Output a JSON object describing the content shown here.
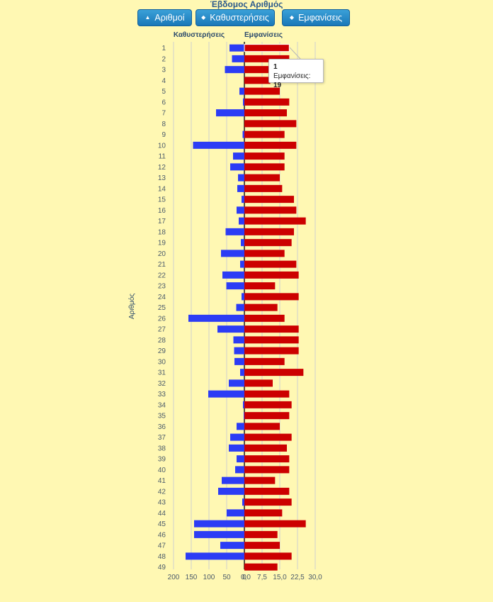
{
  "title": "Έβδομος Αριθμός",
  "buttons": [
    {
      "label": "Αριθμοί",
      "icon": "caret-up-icon",
      "glyph": "▲"
    },
    {
      "label": "Καθυστερήσεις",
      "icon": "sort-icon",
      "glyph": "◆"
    },
    {
      "label": "Εμφανίσεις",
      "icon": "sort-icon",
      "glyph": "◆"
    }
  ],
  "colors": {
    "delay": "#2c3cf5",
    "appear": "#cc0000",
    "bg": "#fff8b3"
  },
  "tooltip": {
    "number": "1",
    "label": "Εμφανίσεις:",
    "value": "19"
  },
  "chart_data": {
    "type": "bar",
    "orientation": "horizontal",
    "yaxis_label": "Αριθμός",
    "left_header": "Καθυστερήσεις",
    "right_header": "Εμφανίσεις",
    "categories": [
      "1",
      "2",
      "3",
      "4",
      "5",
      "6",
      "7",
      "8",
      "9",
      "10",
      "11",
      "12",
      "13",
      "14",
      "15",
      "16",
      "17",
      "18",
      "19",
      "20",
      "21",
      "22",
      "23",
      "24",
      "25",
      "26",
      "27",
      "28",
      "29",
      "30",
      "31",
      "32",
      "33",
      "34",
      "35",
      "36",
      "37",
      "38",
      "39",
      "40",
      "41",
      "42",
      "43",
      "44",
      "45",
      "46",
      "47",
      "48",
      "49"
    ],
    "series": [
      {
        "name": "Καθυστερήσεις",
        "values": [
          42,
          35,
          55,
          0,
          14,
          4,
          80,
          0,
          5,
          145,
          32,
          40,
          18,
          20,
          8,
          22,
          16,
          53,
          10,
          66,
          12,
          62,
          51,
          8,
          23,
          158,
          76,
          31,
          29,
          28,
          12,
          44,
          102,
          4,
          2,
          22,
          40,
          44,
          22,
          26,
          64,
          74,
          6,
          50,
          142,
          142,
          68,
          166,
          0
        ]
      },
      {
        "name": "Εμφανίσεις",
        "values": [
          19,
          19,
          16,
          11,
          15,
          19,
          18,
          22,
          17,
          22,
          17,
          17,
          15,
          16,
          21,
          22,
          26,
          21,
          20,
          17,
          22,
          23,
          13,
          23,
          14,
          17,
          23,
          23,
          23,
          17,
          25,
          12,
          19,
          20,
          19,
          15,
          20,
          18,
          19,
          19,
          13,
          19,
          20,
          16,
          26,
          14,
          15,
          20,
          14
        ]
      }
    ],
    "left_axis": {
      "ticks": [
        "200",
        "150",
        "100",
        "50",
        "0"
      ],
      "range": [
        200,
        0
      ]
    },
    "right_axis": {
      "ticks": [
        "0,0",
        "7,5",
        "15,0",
        "22,5",
        "30,0"
      ],
      "range": [
        0,
        30
      ]
    }
  }
}
